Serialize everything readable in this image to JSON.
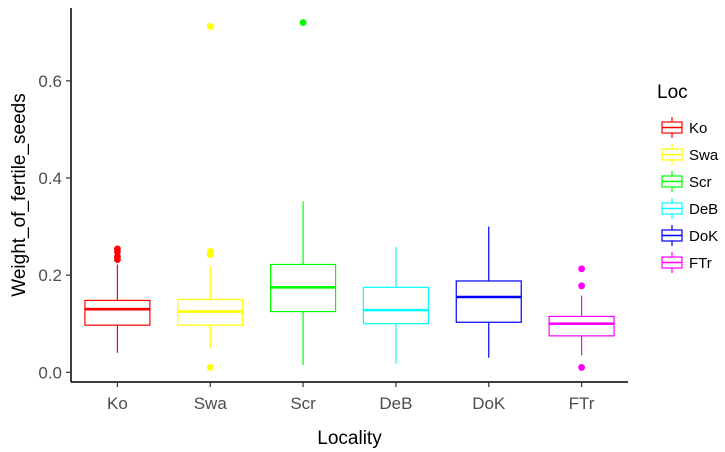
{
  "chart_data": {
    "type": "boxplot",
    "xlabel": "Locality",
    "ylabel": "Weight_of_fertile_seeds",
    "ylim": [
      -0.02,
      0.75
    ],
    "y_ticks": [
      0.0,
      0.2,
      0.4,
      0.6
    ],
    "y_tick_labels": [
      "0.0",
      "0.2",
      "0.4",
      "0.6"
    ],
    "grid": false,
    "legend": {
      "title": "Loc",
      "position": "right"
    },
    "categories": [
      "Ko",
      "Swa",
      "Scr",
      "DeB",
      "DoK",
      "FTr"
    ],
    "series": [
      {
        "name": "Ko",
        "color": "#ff0000",
        "whisker_low": 0.04,
        "q1": 0.097,
        "median": 0.13,
        "q3": 0.148,
        "whisker_high": 0.222,
        "outliers": [
          0.232,
          0.238,
          0.248,
          0.254
        ]
      },
      {
        "name": "Swa",
        "color": "#ffff00",
        "whisker_low": 0.05,
        "q1": 0.097,
        "median": 0.125,
        "q3": 0.15,
        "whisker_high": 0.218,
        "outliers": [
          0.01,
          0.242,
          0.249,
          0.712
        ]
      },
      {
        "name": "Scr",
        "color": "#00ff00",
        "whisker_low": 0.015,
        "q1": 0.125,
        "median": 0.175,
        "q3": 0.222,
        "whisker_high": 0.352,
        "outliers": [
          0.72
        ]
      },
      {
        "name": "DeB",
        "color": "#00ffff",
        "whisker_low": 0.018,
        "q1": 0.1,
        "median": 0.128,
        "q3": 0.175,
        "whisker_high": 0.258,
        "outliers": []
      },
      {
        "name": "DoK",
        "color": "#0000ff",
        "whisker_low": 0.03,
        "q1": 0.103,
        "median": 0.155,
        "q3": 0.188,
        "whisker_high": 0.3,
        "outliers": []
      },
      {
        "name": "FTr",
        "color": "#ff00ff",
        "whisker_low": 0.035,
        "q1": 0.075,
        "median": 0.1,
        "q3": 0.115,
        "whisker_high": 0.158,
        "outliers": [
          0.01,
          0.178,
          0.213
        ]
      }
    ]
  }
}
